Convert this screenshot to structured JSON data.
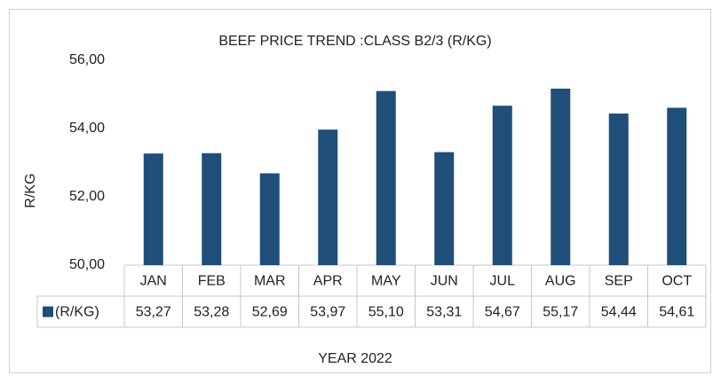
{
  "chart_data": {
    "type": "bar",
    "title": "BEEF PRICE TREND :CLASS B2/3 (R/KG)",
    "x_label": "YEAR 2022",
    "y_label": "R/KG",
    "categories": [
      "JAN",
      "FEB",
      "MAR",
      "APR",
      "MAY",
      "JUN",
      "JUL",
      "AUG",
      "SEP",
      "OCT"
    ],
    "series": [
      {
        "name": "(R/KG)",
        "color": "#1f4e79",
        "values": [
          53.27,
          53.28,
          52.69,
          53.97,
          55.1,
          53.31,
          54.67,
          55.17,
          54.44,
          54.61
        ],
        "value_labels": [
          "53,27",
          "53,28",
          "52,69",
          "53,97",
          "55,10",
          "53,31",
          "54,67",
          "55,17",
          "54,44",
          "54,61"
        ]
      }
    ],
    "ylim": [
      50,
      56
    ],
    "yticks": [
      {
        "value": 50,
        "label": "50,00"
      },
      {
        "value": 52,
        "label": "52,00"
      },
      {
        "value": 54,
        "label": "54,00"
      },
      {
        "value": 56,
        "label": "56,00"
      }
    ],
    "grid": false,
    "data_table": true
  }
}
